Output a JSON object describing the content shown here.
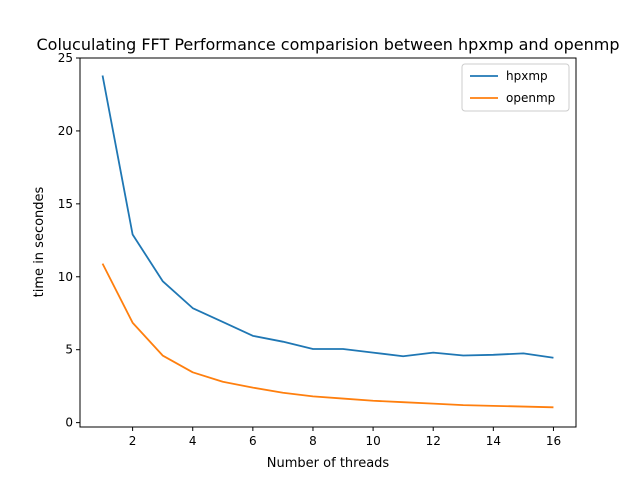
{
  "chart_data": {
    "type": "line",
    "title": "Coluculating FFT Performance comparision between hpxmp and openmp",
    "xlabel": "Number of threads",
    "ylabel": "time in secondes",
    "x": [
      1,
      2,
      3,
      4,
      5,
      6,
      7,
      8,
      9,
      10,
      11,
      12,
      13,
      14,
      15,
      16
    ],
    "xlim": [
      0.25,
      16.75
    ],
    "ylim": [
      -0.3,
      25
    ],
    "xticks": [
      2,
      4,
      6,
      8,
      10,
      12,
      14,
      16
    ],
    "yticks": [
      0,
      5,
      10,
      15,
      20,
      25
    ],
    "xtick_labels": [
      "2",
      "4",
      "6",
      "8",
      "10",
      "12",
      "14",
      "16"
    ],
    "ytick_labels": [
      "0",
      "5",
      "10",
      "15",
      "20",
      "25"
    ],
    "grid": false,
    "legend_position": "top-right",
    "series": [
      {
        "name": "hpxmp",
        "color": "#1f77b4",
        "values": [
          23.8,
          12.9,
          9.7,
          7.85,
          6.9,
          5.95,
          5.55,
          5.05,
          5.05,
          4.8,
          4.55,
          4.8,
          4.6,
          4.65,
          4.75,
          4.45
        ]
      },
      {
        "name": "openmp",
        "color": "#ff7f0e",
        "values": [
          10.9,
          6.85,
          4.6,
          3.45,
          2.8,
          2.4,
          2.05,
          1.8,
          1.65,
          1.5,
          1.4,
          1.3,
          1.2,
          1.15,
          1.1,
          1.05
        ]
      }
    ]
  }
}
